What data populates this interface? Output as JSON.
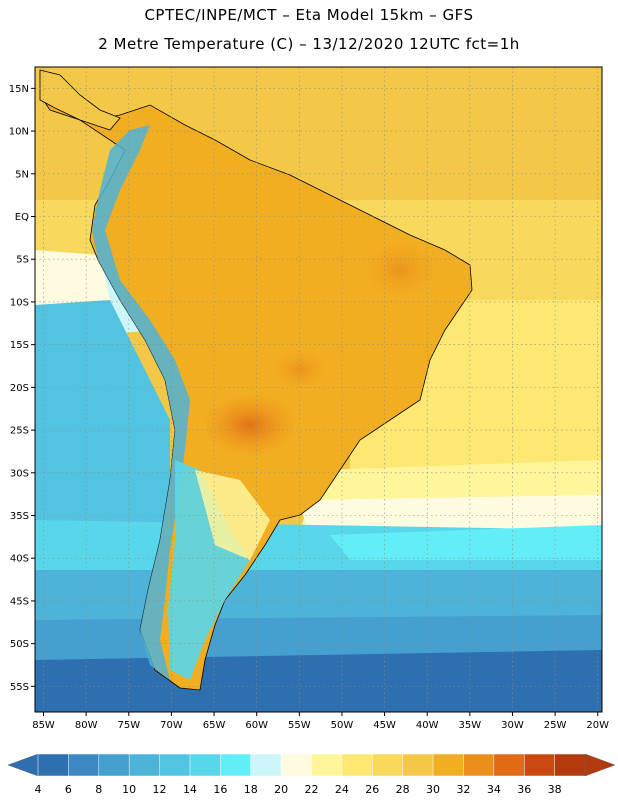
{
  "title": {
    "line1": "CPTEC/INPE/MCT –  Eta Model 15km – GFS",
    "line2": "2 Metre Temperature (C) – 13/12/2020 12UTC fct=1h"
  },
  "axes": {
    "lat_labels": [
      "15N",
      "10N",
      "5N",
      "EQ",
      "5S",
      "10S",
      "15S",
      "20S",
      "25S",
      "30S",
      "35S",
      "40S",
      "45S",
      "50S",
      "55S"
    ],
    "lat_values": [
      15,
      10,
      5,
      0,
      -5,
      -10,
      -15,
      -20,
      -25,
      -30,
      -35,
      -40,
      -45,
      -50,
      -55
    ],
    "lon_labels": [
      "85W",
      "80W",
      "75W",
      "70W",
      "65W",
      "60W",
      "55W",
      "50W",
      "45W",
      "40W",
      "35W",
      "30W",
      "25W",
      "20W"
    ],
    "lon_values": [
      -85,
      -80,
      -75,
      -70,
      -65,
      -60,
      -55,
      -50,
      -45,
      -40,
      -35,
      -30,
      -25,
      -20
    ],
    "lat_range": [
      -58,
      17.5
    ],
    "lon_range": [
      -86,
      -19.5
    ]
  },
  "colorbar": {
    "labels": [
      "4",
      "6",
      "8",
      "10",
      "12",
      "14",
      "16",
      "18",
      "20",
      "22",
      "24",
      "26",
      "28",
      "30",
      "32",
      "34",
      "36",
      "38"
    ],
    "colors": [
      "#2e6fb0",
      "#3b88c3",
      "#45a0cf",
      "#4db3d8",
      "#52c4e1",
      "#59d7ea",
      "#63eef7",
      "#cdf6fb",
      "#fffbe0",
      "#fff59a",
      "#fde873",
      "#f9d95b",
      "#f3c848",
      "#f2ae21",
      "#ec8e1c",
      "#e06a16",
      "#c94a10",
      "#b33a0f"
    ],
    "under_color": "#2e6fb0",
    "over_color": "#b33a0f"
  }
}
